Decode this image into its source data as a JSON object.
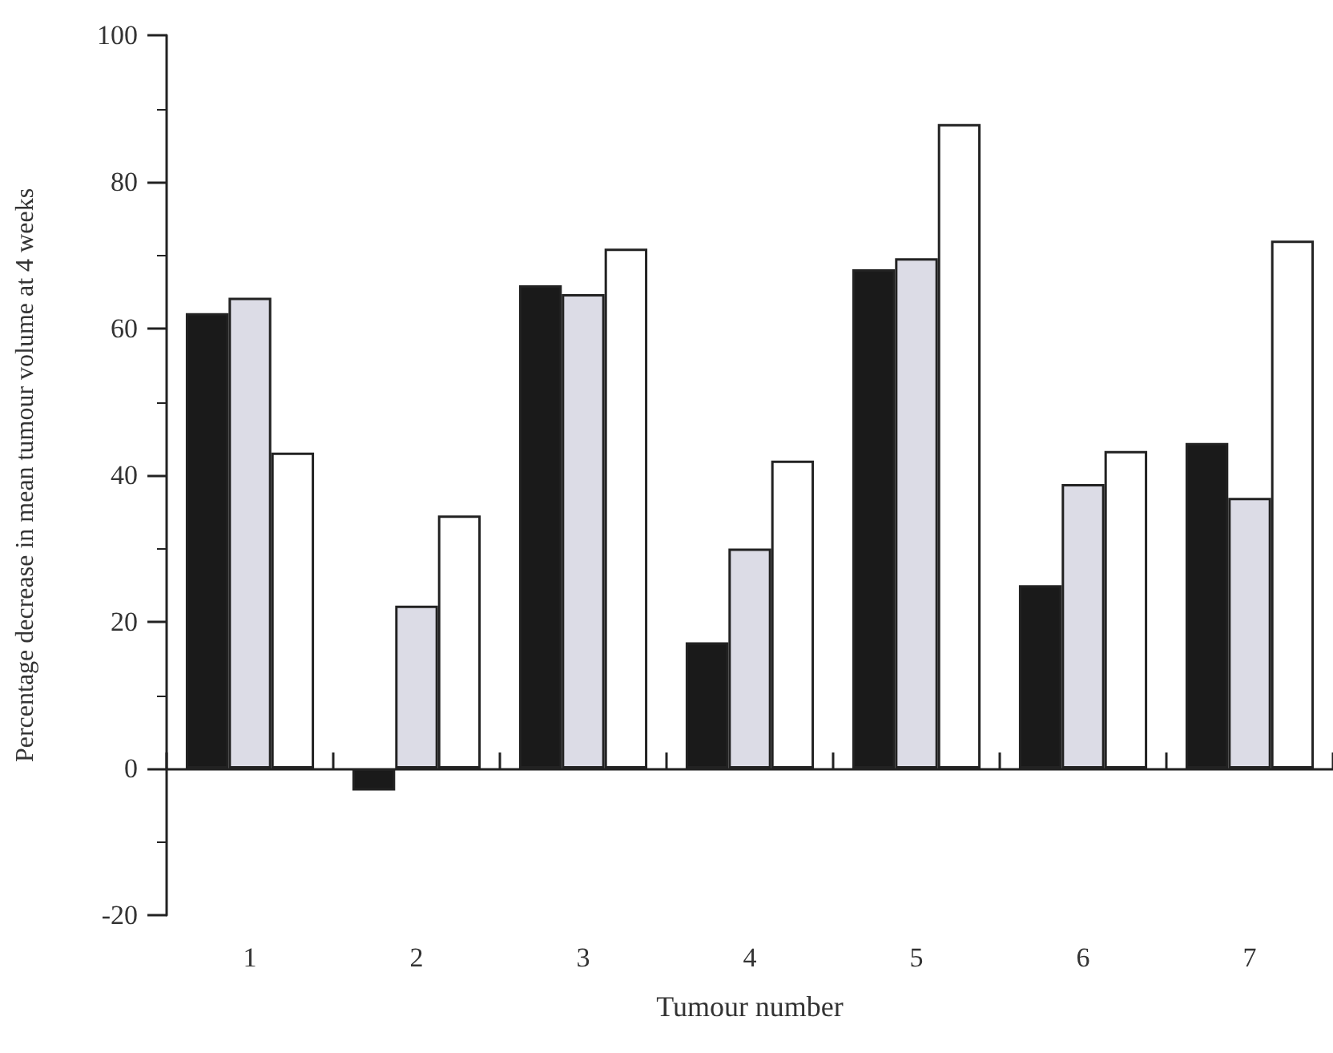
{
  "chart_data": {
    "type": "bar",
    "xlabel": "Tumour number",
    "ylabel": "Percentage decrease in mean tumour volume at 4 weeks",
    "categories": [
      "1",
      "2",
      "3",
      "4",
      "5",
      "6",
      "7"
    ],
    "series": [
      {
        "color": "#1a1a1a",
        "values": [
          62.1,
          -3,
          65.9,
          17.2,
          68.1,
          25,
          44.4
        ]
      },
      {
        "color": "#dcdce6",
        "values": [
          64.2,
          22.2,
          64.7,
          30,
          69.6,
          38.8,
          36.9
        ]
      },
      {
        "color": "#ffffff",
        "values": [
          43.1,
          34.5,
          70.9,
          42,
          87.9,
          43.3,
          72
        ]
      }
    ],
    "ylim": [
      -20,
      100
    ],
    "yticks": [
      -20,
      0,
      20,
      40,
      60,
      80,
      100
    ]
  }
}
